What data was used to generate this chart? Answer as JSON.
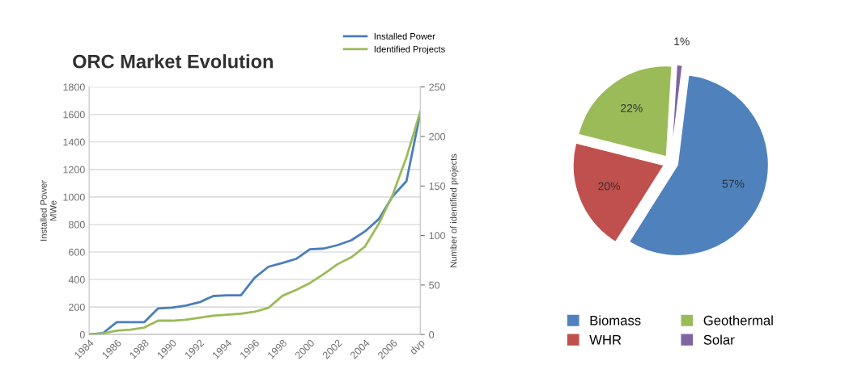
{
  "chart_data": [
    {
      "type": "line",
      "title": "ORC Market Evolution",
      "ylabel": "Installed Power\nMWe",
      "y2label": "Number of identified projects",
      "categories": [
        "1984",
        null,
        "1986",
        null,
        "1988",
        null,
        "1990",
        null,
        "1992",
        null,
        "1994",
        null,
        "1996",
        null,
        "1998",
        null,
        "2000",
        null,
        "2002",
        null,
        "2004",
        null,
        "2006",
        null,
        "dvp"
      ],
      "series": [
        {
          "name": "Installed Power",
          "color": "#4a7ebb",
          "values": [
            0,
            10,
            90,
            90,
            90,
            190,
            195,
            210,
            235,
            280,
            285,
            285,
            413,
            493,
            520,
            550,
            620,
            625,
            650,
            685,
            750,
            840,
            1005,
            1115,
            1610
          ]
        },
        {
          "name": "Identified Projects",
          "color": "#9bbb59",
          "axis": "y2",
          "values": [
            0,
            1,
            4,
            5,
            7,
            14,
            14,
            15,
            17,
            19,
            20,
            21,
            23,
            27,
            39,
            45,
            52,
            61,
            71,
            78,
            89,
            112,
            141,
            179,
            225
          ]
        }
      ],
      "ylim": [
        0,
        1800
      ],
      "yticks": [
        0,
        200,
        400,
        600,
        800,
        1000,
        1200,
        1400,
        1600,
        1800
      ],
      "y2lim": [
        0,
        250
      ],
      "y2ticks": [
        0,
        50,
        100,
        150,
        200,
        250
      ],
      "grid": "y",
      "legend": "top right",
      "marker": "none",
      "line_style": "solid"
    },
    {
      "type": "pie",
      "categories": [
        "Biomass",
        "WHR",
        "Geothermal",
        "Solar"
      ],
      "values": [
        57,
        20,
        22,
        1
      ],
      "colors": [
        "#4f81bd",
        "#c0504d",
        "#9bbb59",
        "#8064a2"
      ],
      "value_labels": [
        "57%",
        "20%",
        "22%",
        "1%"
      ],
      "legend": "bottom"
    }
  ]
}
